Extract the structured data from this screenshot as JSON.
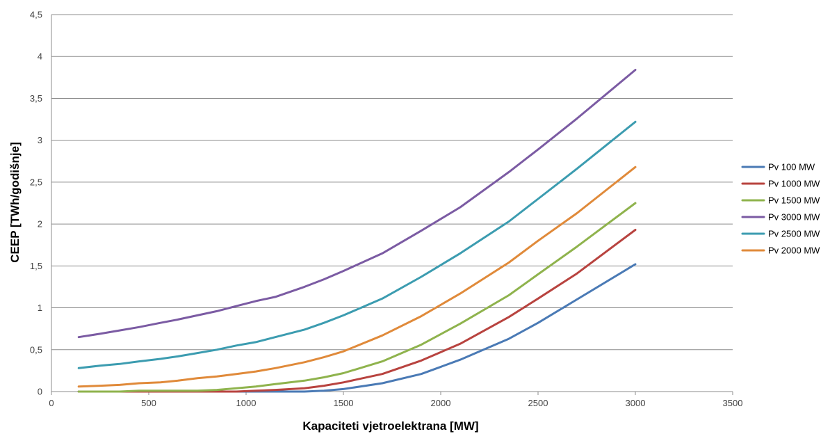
{
  "chart_data": {
    "type": "line",
    "xlabel": "Kapaciteti vjetroelektrana [MW]",
    "ylabel": "CEEP [TWh/godišnje]",
    "xlim": [
      0,
      3500
    ],
    "ylim": [
      0,
      4.5
    ],
    "x_ticks": [
      "0",
      "500",
      "1000",
      "1500",
      "2000",
      "2500",
      "3000",
      "3500"
    ],
    "y_ticks": [
      "0",
      "0,5",
      "1",
      "1,5",
      "2",
      "2,5",
      "3",
      "3,5",
      "4",
      "4,5"
    ],
    "grid": "horizontal",
    "legend_position": "right",
    "x": [
      140,
      250,
      350,
      450,
      560,
      650,
      750,
      850,
      950,
      1050,
      1150,
      1300,
      1400,
      1500,
      1700,
      1900,
      2100,
      2350,
      2500,
      2700,
      3000
    ],
    "series": [
      {
        "name": "Pv 100 MW",
        "color": "#4a7ab5",
        "values": [
          0,
          0,
          0,
          0,
          0,
          0,
          0,
          0,
          0,
          0,
          0,
          0,
          0.01,
          0.03,
          0.1,
          0.21,
          0.38,
          0.63,
          0.82,
          1.1,
          1.52
        ]
      },
      {
        "name": "Pv 1000 MW",
        "color": "#b8433f",
        "values": [
          0,
          0,
          0,
          0,
          0,
          0,
          0,
          0,
          0,
          0.01,
          0.02,
          0.04,
          0.07,
          0.11,
          0.21,
          0.37,
          0.57,
          0.89,
          1.11,
          1.41,
          1.93
        ]
      },
      {
        "name": "Pv 1500 MW",
        "color": "#8fb34d",
        "values": [
          0,
          0,
          0,
          0.01,
          0.01,
          0.01,
          0.01,
          0.02,
          0.04,
          0.06,
          0.09,
          0.13,
          0.17,
          0.22,
          0.36,
          0.56,
          0.81,
          1.15,
          1.4,
          1.73,
          2.25
        ]
      },
      {
        "name": "Pv 3000 MW",
        "color": "#7b5ba3",
        "values": [
          0.65,
          0.69,
          0.73,
          0.77,
          0.82,
          0.86,
          0.91,
          0.96,
          1.02,
          1.08,
          1.13,
          1.25,
          1.34,
          1.44,
          1.65,
          1.92,
          2.2,
          2.62,
          2.89,
          3.26,
          3.84
        ]
      },
      {
        "name": "Pv 2500 MW",
        "color": "#3c9cb0",
        "values": [
          0.28,
          0.31,
          0.33,
          0.36,
          0.39,
          0.42,
          0.46,
          0.5,
          0.55,
          0.59,
          0.65,
          0.74,
          0.82,
          0.91,
          1.11,
          1.37,
          1.65,
          2.03,
          2.3,
          2.66,
          3.22
        ]
      },
      {
        "name": "Pv 2000 MW",
        "color": "#e08a3a",
        "values": [
          0.06,
          0.07,
          0.08,
          0.1,
          0.11,
          0.13,
          0.16,
          0.18,
          0.21,
          0.24,
          0.28,
          0.35,
          0.41,
          0.48,
          0.67,
          0.9,
          1.17,
          1.54,
          1.8,
          2.13,
          2.68
        ]
      }
    ]
  }
}
